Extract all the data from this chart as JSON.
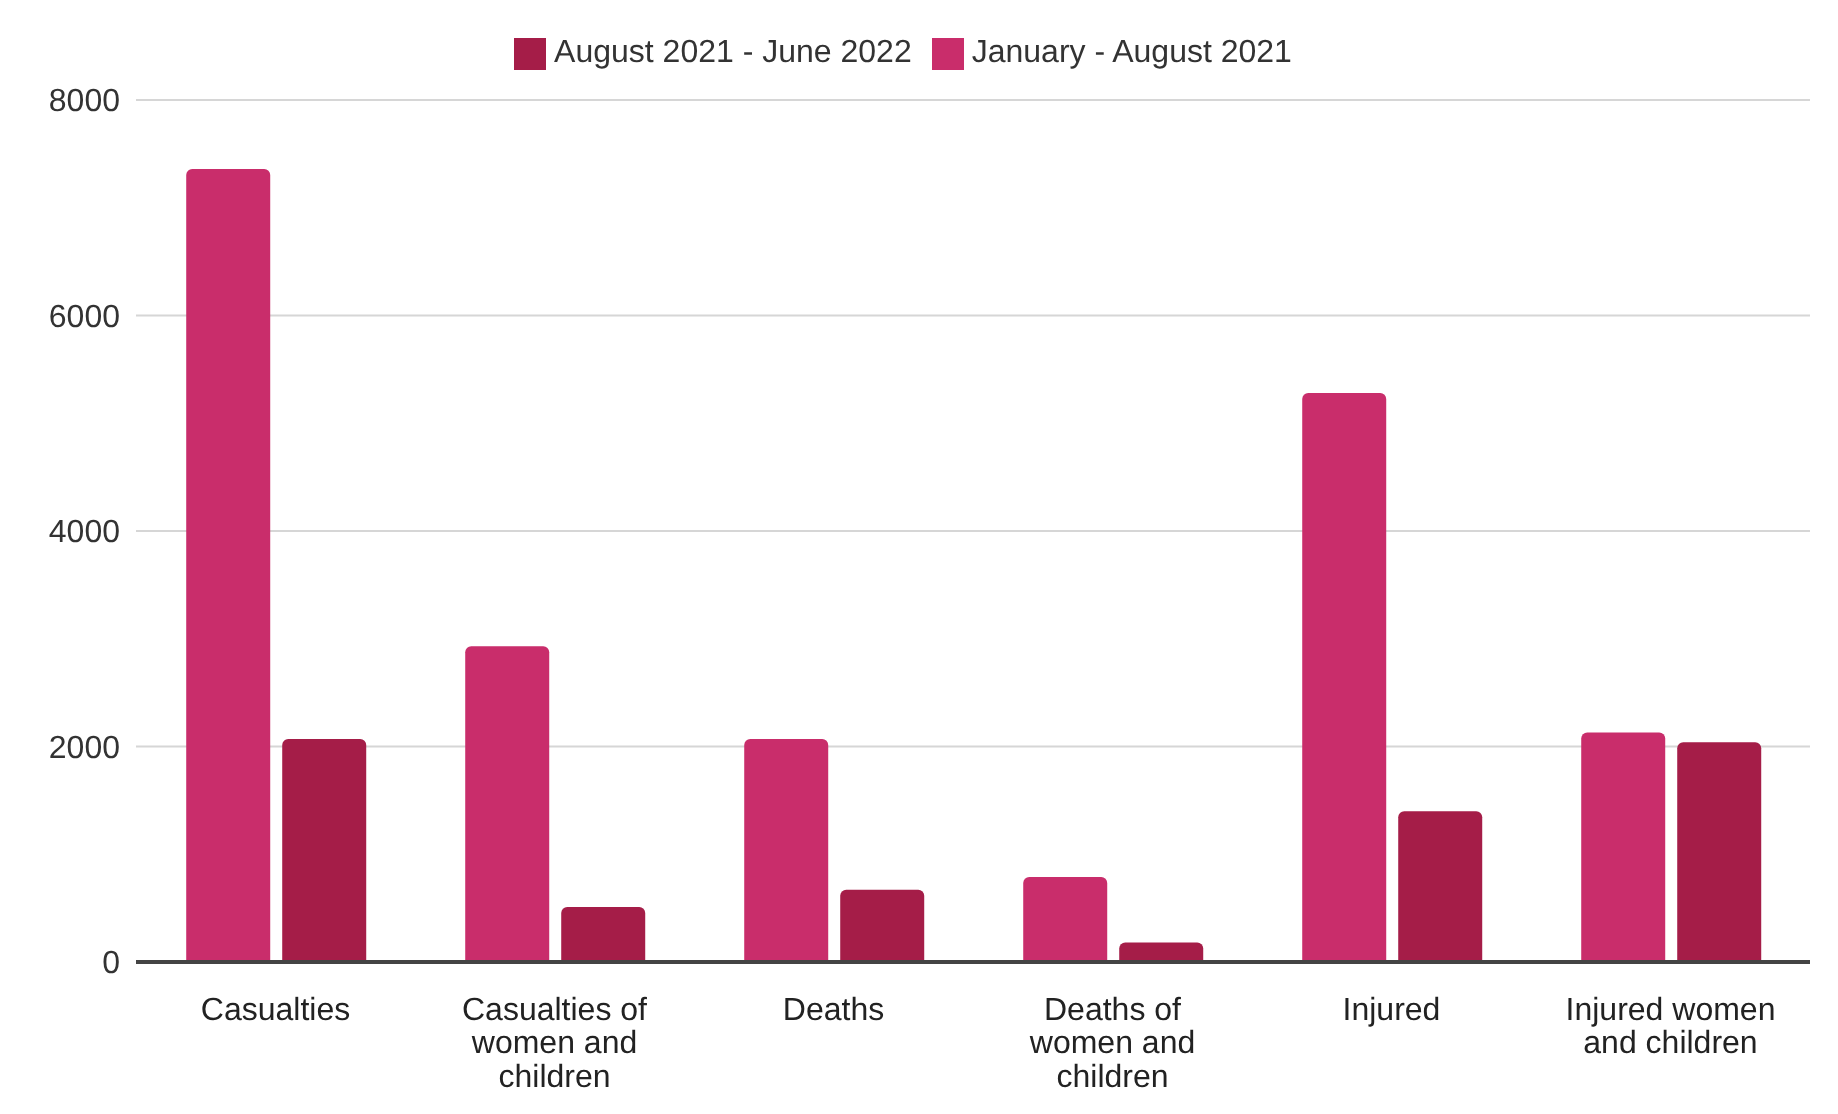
{
  "chart_data": {
    "type": "bar",
    "categories": [
      "Casualties",
      "Casualties of women and children",
      "Deaths",
      "Deaths of women and children",
      "Injured",
      "Injured women and children"
    ],
    "series": [
      {
        "name": "January - August 2021",
        "color": "#c92d6b",
        "values": [
          7360,
          2930,
          2070,
          790,
          5280,
          2130
        ]
      },
      {
        "name": "August 2021 - June 2022",
        "color": "#a51d48",
        "values": [
          2070,
          510,
          670,
          180,
          1400,
          2040
        ]
      }
    ],
    "ylim": [
      0,
      8000
    ],
    "yticks": [
      0,
      2000,
      4000,
      6000,
      8000
    ],
    "grid": "y",
    "legend": "top"
  }
}
